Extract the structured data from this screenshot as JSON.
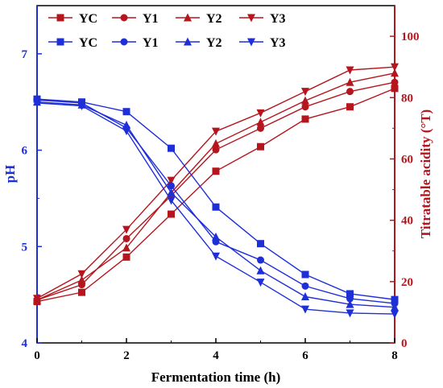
{
  "chart_data": {
    "type": "line",
    "x": [
      0,
      1,
      2,
      3,
      4,
      5,
      6,
      7,
      8
    ],
    "xlabel": "Fermentation time (h)",
    "xlim": [
      0,
      8
    ],
    "x_ticks": [
      0,
      2,
      4,
      6,
      8
    ],
    "left_axis": {
      "label": "pH",
      "lim": [
        4,
        7.5
      ],
      "ticks": [
        4,
        5,
        6,
        7
      ],
      "color": "#1f2fd8"
    },
    "right_axis": {
      "label": "Titratable acidity (°T)",
      "lim": [
        0,
        110
      ],
      "ticks": [
        0,
        20,
        40,
        60,
        80,
        100
      ],
      "color": "#b5161d"
    },
    "grid": false,
    "legend_position": "top-left",
    "series": [
      {
        "name": "YC",
        "axis": "right",
        "marker": "square",
        "color": "#b5161d",
        "values": [
          13.5,
          16.5,
          28,
          42,
          56,
          64,
          73,
          77,
          83
        ]
      },
      {
        "name": "Y1",
        "axis": "right",
        "marker": "circle",
        "color": "#b5161d",
        "values": [
          14,
          19,
          34,
          48,
          63,
          70,
          77,
          82,
          85
        ]
      },
      {
        "name": "Y2",
        "axis": "right",
        "marker": "triangle-up",
        "color": "#b5161d",
        "values": [
          14,
          20.5,
          31,
          49,
          65,
          72,
          79,
          85,
          88
        ]
      },
      {
        "name": "Y3",
        "axis": "right",
        "marker": "triangle-down",
        "color": "#b5161d",
        "values": [
          14.5,
          22.5,
          37,
          53,
          69,
          75,
          82,
          89,
          90
        ]
      },
      {
        "name": "YC",
        "axis": "left",
        "marker": "square",
        "color": "#1f2fd8",
        "values": [
          6.53,
          6.5,
          6.4,
          6.02,
          5.41,
          5.03,
          4.71,
          4.51,
          4.45
        ]
      },
      {
        "name": "Y1",
        "axis": "left",
        "marker": "circle",
        "color": "#1f2fd8",
        "values": [
          6.52,
          6.49,
          6.23,
          5.63,
          5.05,
          4.86,
          4.59,
          4.46,
          4.41
        ]
      },
      {
        "name": "Y2",
        "axis": "left",
        "marker": "triangle-up",
        "color": "#1f2fd8",
        "values": [
          6.5,
          6.47,
          6.26,
          5.56,
          5.1,
          4.75,
          4.48,
          4.4,
          4.37
        ]
      },
      {
        "name": "Y3",
        "axis": "left",
        "marker": "triangle-down",
        "color": "#1f2fd8",
        "values": [
          6.49,
          6.46,
          6.2,
          5.48,
          4.9,
          4.63,
          4.35,
          4.31,
          4.3
        ]
      }
    ]
  }
}
